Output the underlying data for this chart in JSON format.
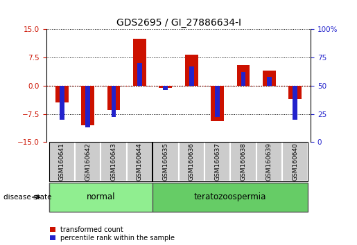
{
  "title": "GDS2695 / GI_27886634-I",
  "samples": [
    "GSM160641",
    "GSM160642",
    "GSM160643",
    "GSM160644",
    "GSM160635",
    "GSM160636",
    "GSM160637",
    "GSM160638",
    "GSM160639",
    "GSM160640"
  ],
  "red_values": [
    -4.5,
    -10.5,
    -6.5,
    12.5,
    -0.5,
    8.2,
    -9.5,
    5.5,
    4.0,
    -3.5
  ],
  "blue_percentiles": [
    20,
    13,
    22,
    70,
    46,
    67,
    22,
    62,
    58,
    20
  ],
  "disease_groups": [
    {
      "label": "normal",
      "start": 0,
      "end": 4,
      "color": "#90EE90"
    },
    {
      "label": "teratozoospermia",
      "start": 4,
      "end": 10,
      "color": "#66CC66"
    }
  ],
  "ylim_left": [
    -15,
    15
  ],
  "ylim_right": [
    0,
    100
  ],
  "yticks_left": [
    -15,
    -7.5,
    0,
    7.5,
    15
  ],
  "yticks_right": [
    0,
    25,
    50,
    75,
    100
  ],
  "red_color": "#CC1100",
  "blue_color": "#2222CC",
  "bar_width": 0.5,
  "blue_bar_width": 0.18,
  "hline_zero_color": "#CC1100",
  "bg_color": "white",
  "label_red": "transformed count",
  "label_blue": "percentile rank within the sample",
  "title_fontsize": 10,
  "tick_fontsize": 7.5,
  "sample_fontsize": 6.5,
  "group_fontsize": 8.5,
  "legend_fontsize": 7
}
